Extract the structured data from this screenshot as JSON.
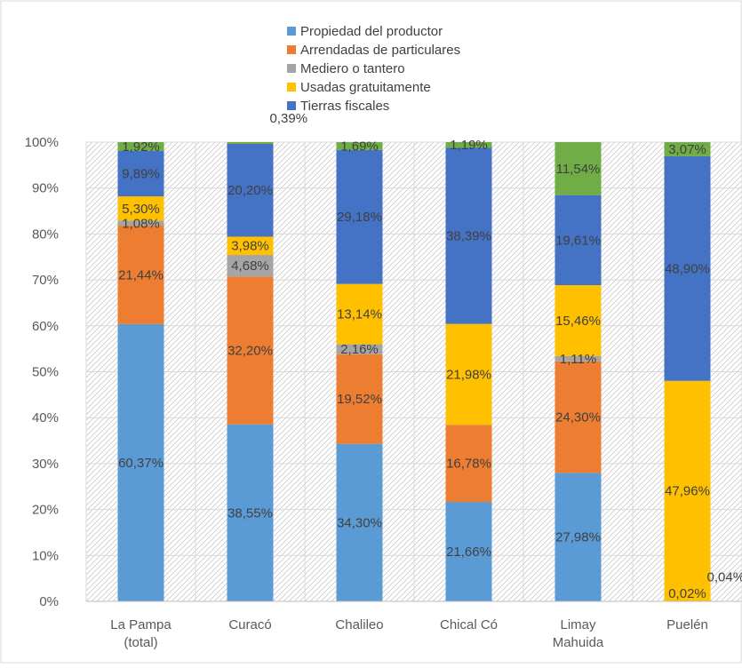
{
  "chart_data": {
    "type": "bar",
    "stacked": true,
    "categories": [
      [
        "La Pampa",
        "(total)"
      ],
      [
        "Curacó"
      ],
      [
        "Chalileo"
      ],
      [
        "Chical Có"
      ],
      [
        "Limay",
        "Mahuida"
      ],
      [
        "Puelén"
      ]
    ],
    "series": [
      {
        "name": "Propiedad del productor",
        "color": "#5B9BD5",
        "values": [
          60.37,
          38.55,
          34.3,
          21.66,
          27.98,
          0.02
        ],
        "labels": [
          "60,37%",
          "38,55%",
          "34,30%",
          "21,66%",
          "27,98%",
          "0,02%"
        ]
      },
      {
        "name": "Arrendadas de particulares",
        "color": "#ED7D31",
        "values": [
          21.44,
          32.2,
          19.52,
          16.78,
          24.3,
          0
        ],
        "labels": [
          "21,44%",
          "32,20%",
          "19,52%",
          "16,78%",
          "24,30%",
          ""
        ]
      },
      {
        "name": "Mediero o tantero",
        "color": "#A5A5A5",
        "values": [
          1.08,
          4.68,
          2.16,
          0,
          1.11,
          0.04
        ],
        "labels": [
          "1,08%",
          "4,68%",
          "2,16%",
          "",
          "1,11%",
          "0,04%"
        ]
      },
      {
        "name": "Usadas gratuitamente",
        "color": "#FFC000",
        "values": [
          5.3,
          3.98,
          13.14,
          21.98,
          15.46,
          47.96
        ],
        "labels": [
          "5,30%",
          "3,98%",
          "13,14%",
          "21,98%",
          "15,46%",
          "47,96%"
        ]
      },
      {
        "name": "Tierras fiscales",
        "color": "#4472C4",
        "values": [
          9.89,
          20.2,
          29.18,
          38.39,
          19.61,
          48.9
        ],
        "labels": [
          "9,89%",
          "20,20%",
          "29,18%",
          "38,39%",
          "19,61%",
          "48,90%"
        ]
      },
      {
        "name": "",
        "color": "#70AD47",
        "values": [
          1.92,
          0.39,
          1.69,
          1.19,
          11.54,
          3.07
        ],
        "labels": [
          "1,92%",
          "0,39%",
          "1,69%",
          "1,19%",
          "11,54%",
          "3,07%"
        ]
      }
    ],
    "y_ticks": [
      "0%",
      "10%",
      "20%",
      "30%",
      "40%",
      "50%",
      "60%",
      "70%",
      "80%",
      "90%",
      "100%"
    ],
    "ylim": [
      0,
      100
    ],
    "grid": true,
    "legend_position": "top"
  }
}
